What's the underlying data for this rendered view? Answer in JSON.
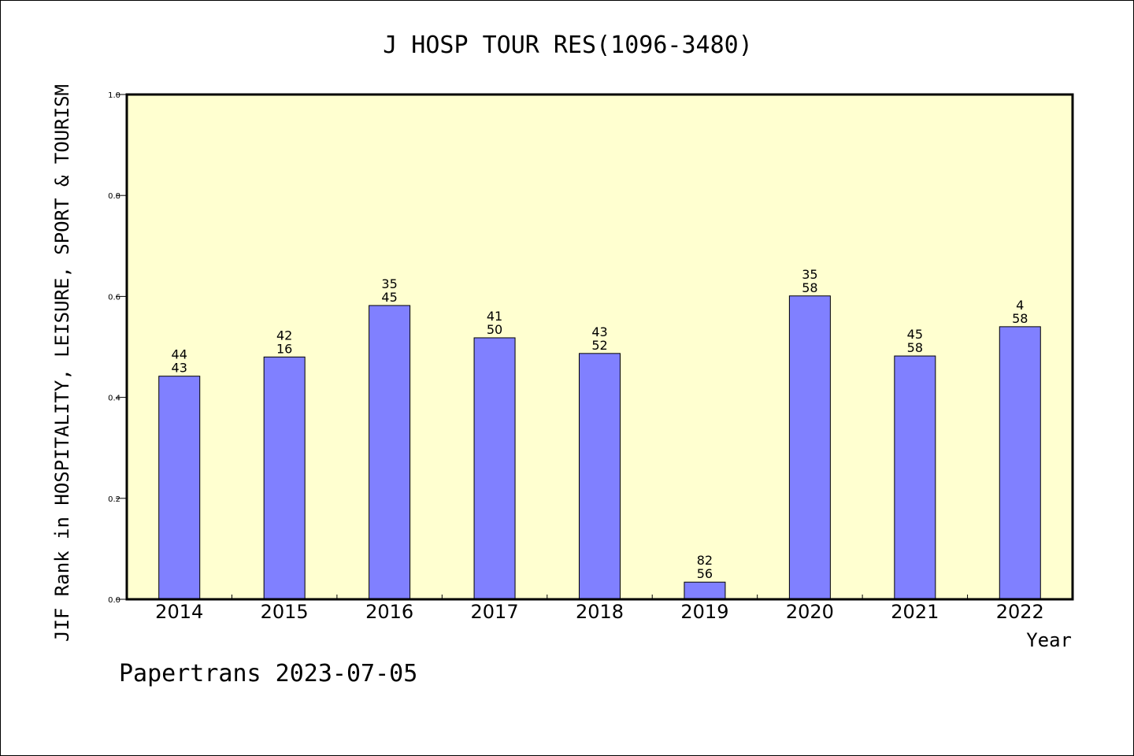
{
  "chart_data": {
    "type": "bar",
    "title": "J HOSP TOUR RES(1096-3480)",
    "xlabel": "Year",
    "ylabel": "JIF Rank in HOSPITALITY, LEISURE, SPORT & TOURISM",
    "ylim": [
      0,
      1.0
    ],
    "yticks": [
      "0.0",
      "0.2",
      "0.4",
      "0.6",
      "0.8",
      "1.0"
    ],
    "categories": [
      "2014",
      "2015",
      "2016",
      "2017",
      "2018",
      "2019",
      "2020",
      "2021",
      "2022"
    ],
    "values": [
      0.442,
      0.48,
      0.582,
      0.518,
      0.487,
      0.034,
      0.601,
      0.482,
      0.54
    ],
    "labels_top": [
      "44",
      "42",
      "35",
      "41",
      "43",
      "82",
      "35",
      "45",
      "4"
    ],
    "labels_bottom": [
      "43",
      "16",
      "45",
      "50",
      "52",
      "56",
      "58",
      "58",
      "58"
    ],
    "bar_color": "#8080ff",
    "plot_background": "#ffffd0",
    "grid": false,
    "legend": "none"
  },
  "footer": {
    "text": "Papertrans 2023-07-05"
  }
}
